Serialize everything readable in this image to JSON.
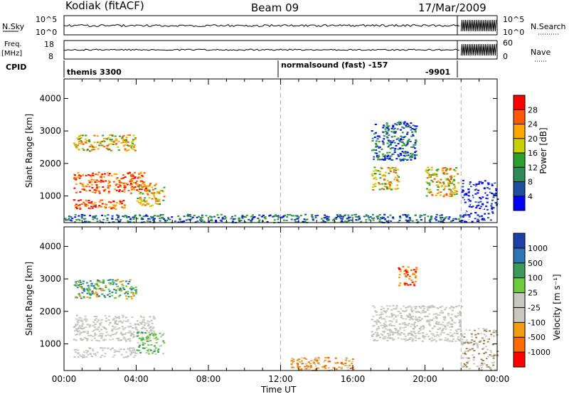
{
  "header": {
    "station": "Kodiak (fitACF)",
    "beam": "Beam 09",
    "date": "17/Mar/2009"
  },
  "panels": {
    "nsky_label": "N.Sky",
    "nsky_ticks": [
      "10^5",
      "10^0"
    ],
    "nsearch_label": "N.Search",
    "nsearch_ticks": [
      "10^5",
      "10^0"
    ],
    "freq_label_1": "Freq.",
    "freq_label_2": "[MHz]",
    "freq_ticks": [
      "18",
      "8"
    ],
    "nave_label": "Nave",
    "nave_ticks": [
      "60",
      "0"
    ],
    "cpid_label": "CPID",
    "cpid_entries": [
      "themis 3300",
      "normalsound (fast) -157",
      "-9901"
    ]
  },
  "colorbars": {
    "power": {
      "label": "Power [dB]",
      "ticks": [
        "28",
        "24",
        "20",
        "16",
        "12",
        "8",
        "4"
      ],
      "colors": [
        "#ff0000",
        "#ff5a00",
        "#ffa500",
        "#c8d000",
        "#2ca02c",
        "#2e8b57",
        "#1f4fa0",
        "#0000ff"
      ]
    },
    "velocity": {
      "label": "Velocity [m s⁻¹]",
      "ticks": [
        "1000",
        "500",
        "100",
        "25",
        "-25",
        "-100",
        "-500",
        "-1000"
      ],
      "colors": [
        "#1d3fa8",
        "#2d76b5",
        "#3c9a58",
        "#6ccc3c",
        "#c8c8c0",
        "#c8c8c0",
        "#f39c12",
        "#ff6a00",
        "#ff0000"
      ]
    }
  },
  "chart_data": {
    "type": "heatmap",
    "title": "Kodiak (fitACF)  Beam 09  17/Mar/2009",
    "xlabel": "Time UT",
    "ylabel": "Slant Range [km]",
    "x_ticks": [
      "00:00",
      "04:00",
      "08:00",
      "12:00",
      "16:00",
      "20:00",
      "00:00"
    ],
    "y_ticks": [
      "1000",
      "2000",
      "3000",
      "4000"
    ],
    "xlim_hours": [
      0,
      24
    ],
    "ylim_km": [
      180,
      4600
    ],
    "mode_change_hours": [
      12,
      22
    ],
    "power_regions": [
      {
        "t0": 0.5,
        "t1": 4.5,
        "r0": 1100,
        "r1": 1750,
        "level": "high"
      },
      {
        "t0": 0.5,
        "t1": 3.5,
        "r0": 600,
        "r1": 900,
        "level": "high"
      },
      {
        "t0": 0.5,
        "t1": 4.0,
        "r0": 2400,
        "r1": 2900,
        "level": "mid"
      },
      {
        "t0": 4.0,
        "t1": 5.5,
        "r0": 700,
        "r1": 1400,
        "level": "mid"
      },
      {
        "t0": 17.0,
        "t1": 18.5,
        "r0": 1200,
        "r1": 1900,
        "level": "mid"
      },
      {
        "t0": 20.0,
        "t1": 21.8,
        "r0": 1000,
        "r1": 1900,
        "level": "mid"
      },
      {
        "t0": 17.0,
        "t1": 19.5,
        "r0": 2100,
        "r1": 3300,
        "level": "low"
      },
      {
        "t0": 0.0,
        "t1": 22.0,
        "r0": 200,
        "r1": 450,
        "level": "low"
      },
      {
        "t0": 22.0,
        "t1": 24.0,
        "r0": 200,
        "r1": 1500,
        "level": "noise"
      }
    ],
    "velocity_regions": [
      {
        "t0": 0.5,
        "t1": 5.0,
        "r0": 1100,
        "r1": 1900,
        "vel": "-25 to 25"
      },
      {
        "t0": 0.5,
        "t1": 4.0,
        "r0": 600,
        "r1": 900,
        "vel": "-25 to 25"
      },
      {
        "t0": 0.5,
        "t1": 4.0,
        "r0": 2400,
        "r1": 3000,
        "vel": "100 to 500"
      },
      {
        "t0": 4.0,
        "t1": 5.5,
        "r0": 700,
        "r1": 1400,
        "vel": "25 to 100"
      },
      {
        "t0": 17.0,
        "t1": 22.0,
        "r0": 1100,
        "r1": 2200,
        "vel": "-25 to 25"
      },
      {
        "t0": 18.5,
        "t1": 19.5,
        "r0": 2800,
        "r1": 3400,
        "vel": "-500 to -100"
      },
      {
        "t0": 12.5,
        "t1": 16.0,
        "r0": 200,
        "r1": 600,
        "vel": "-100 to -25"
      },
      {
        "t0": 22.0,
        "t1": 24.0,
        "r0": 200,
        "r1": 1500,
        "vel": "noise"
      }
    ]
  }
}
